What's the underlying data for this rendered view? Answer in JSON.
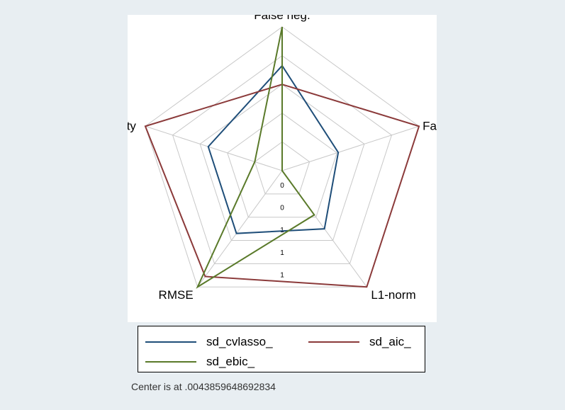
{
  "chart_data": {
    "type": "radar",
    "axes": [
      "False neg.",
      "False pos.",
      "L1-norm",
      "RMSE",
      "Sparsity"
    ],
    "tick_labels": [
      "0",
      "0",
      "1",
      "1",
      "1"
    ],
    "series": [
      {
        "name": "sd_cvlasso_",
        "color": "#1f4e79",
        "values": [
          0.73,
          0.41,
          0.5,
          0.54,
          0.54
        ]
      },
      {
        "name": "sd_aic_",
        "color": "#8b3a3a",
        "values": [
          0.6,
          1.0,
          1.0,
          0.91,
          1.0
        ]
      },
      {
        "name": "sd_ebic_",
        "color": "#5a7a2a",
        "values": [
          1.0,
          0.0,
          0.38,
          1.0,
          0.2
        ]
      }
    ],
    "rings": 5,
    "legend_placement": "bottom",
    "grid": true,
    "center_note": "Center is at .0043859648692834"
  }
}
